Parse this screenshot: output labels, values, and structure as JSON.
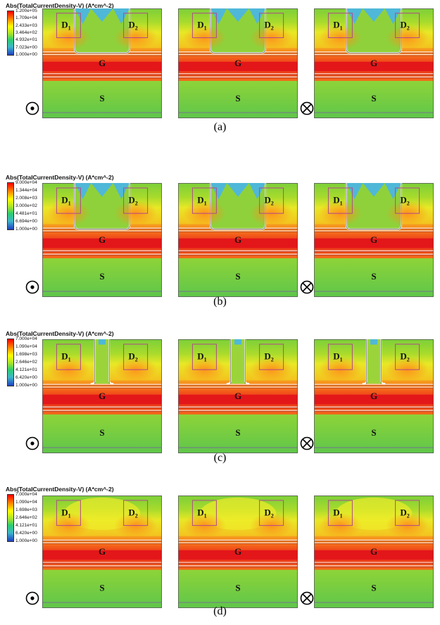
{
  "figures": [
    {
      "caption": "(a)",
      "legend": {
        "title": "Abs(TotalCurrentDensity-V) (A*cm^-2)",
        "values": [
          "1.200e+05",
          "1.709e+04",
          "2.433e+03",
          "3.464e+02",
          "4.932e+01",
          "7.023e+00",
          "1.000e+00"
        ]
      },
      "labels": {
        "d1": "D",
        "d1_sub": "1",
        "d2": "D",
        "d2_sub": "2",
        "g": "G",
        "s": "S"
      },
      "symbols": {
        "left": "dot-in-circle-icon",
        "right": "cross-in-circle-icon"
      }
    },
    {
      "caption": "(b)",
      "legend": {
        "title": "Abs(TotalCurrentDensity-V) (A*cm^-2)",
        "values": [
          "9.000e+04",
          "1.344e+04",
          "2.008e+03",
          "3.000e+02",
          "4.481e+01",
          "6.694e+00",
          "1.000e+00"
        ]
      },
      "labels": {
        "d1": "D",
        "d1_sub": "1",
        "d2": "D",
        "d2_sub": "2",
        "g": "G",
        "s": "S"
      },
      "symbols": {
        "left": "dot-in-circle-icon",
        "right": "cross-in-circle-icon"
      }
    },
    {
      "caption": "(c)",
      "legend": {
        "title": "Abs(TotalCurrentDensity-V) (A*cm^-2)",
        "values": [
          "7.000e+04",
          "1.090e+04",
          "1.698e+03",
          "2.646e+02",
          "4.121e+01",
          "6.420e+00",
          "1.000e+00"
        ]
      },
      "labels": {
        "d1": "D",
        "d1_sub": "1",
        "d2": "D",
        "d2_sub": "2",
        "g": "G",
        "s": "S"
      },
      "symbols": {
        "left": "dot-in-circle-icon",
        "right": "cross-in-circle-icon"
      }
    },
    {
      "caption": "(d)",
      "legend": {
        "title": "Abs(TotalCurrentDensity-V) (A*cm^-2)",
        "values": [
          "7.000e+04",
          "1.090e+04",
          "1.698e+03",
          "2.646e+02",
          "4.121e+01",
          "6.420e+00",
          "1.000e+00"
        ]
      },
      "labels": {
        "d1": "D",
        "d1_sub": "1",
        "d2": "D",
        "d2_sub": "2",
        "g": "G",
        "s": "S"
      },
      "symbols": {
        "left": "dot-in-circle-icon",
        "right": "cross-in-circle-icon"
      }
    }
  ]
}
